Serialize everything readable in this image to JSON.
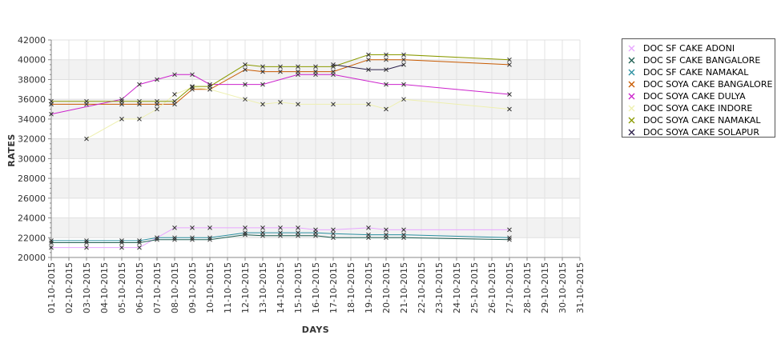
{
  "chart_data": {
    "type": "line",
    "xlabel": "DAYS",
    "ylabel": "RATES",
    "ylim": [
      20000,
      42000
    ],
    "yticks": [
      20000,
      22000,
      24000,
      26000,
      28000,
      30000,
      32000,
      34000,
      36000,
      38000,
      40000,
      42000
    ],
    "x_tick_labels": [
      "01-10-2015",
      "02-10-2015",
      "03-10-2015",
      "04-10-2015",
      "05-10-2015",
      "06-10-2015",
      "07-10-2015",
      "08-10-2015",
      "09-10-2015",
      "10-10-2015",
      "11-10-2015",
      "12-10-2015",
      "13-10-2015",
      "14-10-2015",
      "15-10-2015",
      "16-10-2015",
      "17-10-2015",
      "18-10-2015",
      "19-10-2015",
      "20-10-2015",
      "21-10-2015",
      "22-10-2015",
      "23-10-2015",
      "24-10-2015",
      "25-10-2015",
      "26-10-2015",
      "27-10-2015",
      "28-10-2015",
      "29-10-2015",
      "30-10-2015",
      "31-10-2015"
    ],
    "grid": true,
    "legend_position": "right",
    "series": [
      {
        "name": "DOC SF CAKE ADONI",
        "color": "#e8a6ff",
        "points": [
          [
            "01-10-2015",
            21000
          ],
          [
            "03-10-2015",
            21000
          ],
          [
            "05-10-2015",
            21000
          ],
          [
            "06-10-2015",
            21000
          ],
          [
            "07-10-2015",
            22000
          ],
          [
            "08-10-2015",
            23000
          ],
          [
            "09-10-2015",
            23000
          ],
          [
            "10-10-2015",
            23000
          ],
          [
            "12-10-2015",
            23000
          ],
          [
            "13-10-2015",
            23000
          ],
          [
            "14-10-2015",
            23000
          ],
          [
            "15-10-2015",
            23000
          ],
          [
            "16-10-2015",
            22800
          ],
          [
            "17-10-2015",
            22800
          ],
          [
            "19-10-2015",
            23000
          ],
          [
            "20-10-2015",
            22800
          ],
          [
            "21-10-2015",
            22800
          ],
          [
            "27-10-2015",
            22800
          ]
        ]
      },
      {
        "name": "DOC SF CAKE BANGALORE",
        "color": "#1f5f52",
        "points": [
          [
            "01-10-2015",
            21500
          ],
          [
            "03-10-2015",
            21500
          ],
          [
            "05-10-2015",
            21500
          ],
          [
            "06-10-2015",
            21500
          ],
          [
            "07-10-2015",
            21800
          ],
          [
            "08-10-2015",
            21800
          ],
          [
            "09-10-2015",
            21800
          ],
          [
            "10-10-2015",
            21800
          ],
          [
            "12-10-2015",
            22300
          ],
          [
            "13-10-2015",
            22200
          ],
          [
            "14-10-2015",
            22200
          ],
          [
            "15-10-2015",
            22200
          ],
          [
            "16-10-2015",
            22200
          ],
          [
            "17-10-2015",
            22000
          ],
          [
            "19-10-2015",
            22000
          ],
          [
            "20-10-2015",
            22000
          ],
          [
            "21-10-2015",
            22000
          ],
          [
            "27-10-2015",
            21800
          ]
        ]
      },
      {
        "name": "DOC SF CAKE NAMAKAL",
        "color": "#2a8fa0",
        "points": [
          [
            "01-10-2015",
            21700
          ],
          [
            "03-10-2015",
            21700
          ],
          [
            "05-10-2015",
            21700
          ],
          [
            "06-10-2015",
            21700
          ],
          [
            "07-10-2015",
            22000
          ],
          [
            "08-10-2015",
            22000
          ],
          [
            "09-10-2015",
            22000
          ],
          [
            "10-10-2015",
            22000
          ],
          [
            "12-10-2015",
            22500
          ],
          [
            "13-10-2015",
            22500
          ],
          [
            "14-10-2015",
            22500
          ],
          [
            "15-10-2015",
            22500
          ],
          [
            "16-10-2015",
            22500
          ],
          [
            "17-10-2015",
            22400
          ],
          [
            "19-10-2015",
            22300
          ],
          [
            "20-10-2015",
            22300
          ],
          [
            "21-10-2015",
            22300
          ],
          [
            "27-10-2015",
            22000
          ]
        ]
      },
      {
        "name": "DOC SOYA CAKE BANGALORE",
        "color": "#c85a00",
        "points": [
          [
            "01-10-2015",
            35500
          ],
          [
            "03-10-2015",
            35500
          ],
          [
            "05-10-2015",
            35500
          ],
          [
            "06-10-2015",
            35500
          ],
          [
            "07-10-2015",
            35500
          ],
          [
            "08-10-2015",
            35500
          ],
          [
            "09-10-2015",
            37000
          ],
          [
            "10-10-2015",
            37000
          ],
          [
            "12-10-2015",
            39000
          ],
          [
            "13-10-2015",
            38800
          ],
          [
            "14-10-2015",
            38800
          ],
          [
            "15-10-2015",
            38800
          ],
          [
            "16-10-2015",
            38800
          ],
          [
            "17-10-2015",
            38800
          ],
          [
            "19-10-2015",
            40000
          ],
          [
            "20-10-2015",
            40000
          ],
          [
            "21-10-2015",
            40000
          ],
          [
            "27-10-2015",
            39500
          ]
        ]
      },
      {
        "name": "DOC SOYA CAKE DULYA",
        "color": "#cc22cc",
        "points": [
          [
            "01-10-2015",
            34500
          ],
          [
            "05-10-2015",
            36000
          ],
          [
            "06-10-2015",
            37500
          ],
          [
            "07-10-2015",
            38000
          ],
          [
            "08-10-2015",
            38500
          ],
          [
            "09-10-2015",
            38500
          ],
          [
            "10-10-2015",
            37500
          ],
          [
            "12-10-2015",
            37500
          ],
          [
            "13-10-2015",
            37500
          ],
          [
            "15-10-2015",
            38500
          ],
          [
            "16-10-2015",
            38500
          ],
          [
            "17-10-2015",
            38500
          ],
          [
            "20-10-2015",
            37500
          ],
          [
            "21-10-2015",
            37500
          ],
          [
            "27-10-2015",
            36500
          ]
        ]
      },
      {
        "name": "DOC SOYA CAKE INDORE",
        "color": "#eef0b0",
        "points": [
          [
            "03-10-2015",
            32000
          ],
          [
            "05-10-2015",
            34000
          ],
          [
            "06-10-2015",
            34000
          ],
          [
            "07-10-2015",
            35000
          ],
          [
            "08-10-2015",
            36500
          ],
          [
            "09-10-2015",
            37200
          ],
          [
            "10-10-2015",
            37000
          ],
          [
            "12-10-2015",
            36000
          ],
          [
            "13-10-2015",
            35500
          ],
          [
            "14-10-2015",
            35700
          ],
          [
            "15-10-2015",
            35500
          ],
          [
            "17-10-2015",
            35500
          ],
          [
            "19-10-2015",
            35500
          ],
          [
            "20-10-2015",
            35000
          ],
          [
            "21-10-2015",
            36000
          ],
          [
            "27-10-2015",
            35000
          ]
        ]
      },
      {
        "name": "DOC SOYA CAKE NAMAKAL",
        "color": "#8a9a00",
        "points": [
          [
            "01-10-2015",
            35800
          ],
          [
            "03-10-2015",
            35800
          ],
          [
            "05-10-2015",
            35800
          ],
          [
            "06-10-2015",
            35800
          ],
          [
            "07-10-2015",
            35800
          ],
          [
            "08-10-2015",
            35800
          ],
          [
            "09-10-2015",
            37300
          ],
          [
            "10-10-2015",
            37300
          ],
          [
            "12-10-2015",
            39500
          ],
          [
            "13-10-2015",
            39300
          ],
          [
            "14-10-2015",
            39300
          ],
          [
            "15-10-2015",
            39300
          ],
          [
            "16-10-2015",
            39300
          ],
          [
            "17-10-2015",
            39300
          ],
          [
            "19-10-2015",
            40500
          ],
          [
            "20-10-2015",
            40500
          ],
          [
            "21-10-2015",
            40500
          ],
          [
            "27-10-2015",
            40000
          ]
        ]
      },
      {
        "name": "DOC SOYA CAKE SOLAPUR",
        "color": "#2b1f4a",
        "points": [
          [
            "17-10-2015",
            39500
          ],
          [
            "19-10-2015",
            39000
          ],
          [
            "20-10-2015",
            39000
          ],
          [
            "21-10-2015",
            39500
          ]
        ]
      }
    ]
  }
}
